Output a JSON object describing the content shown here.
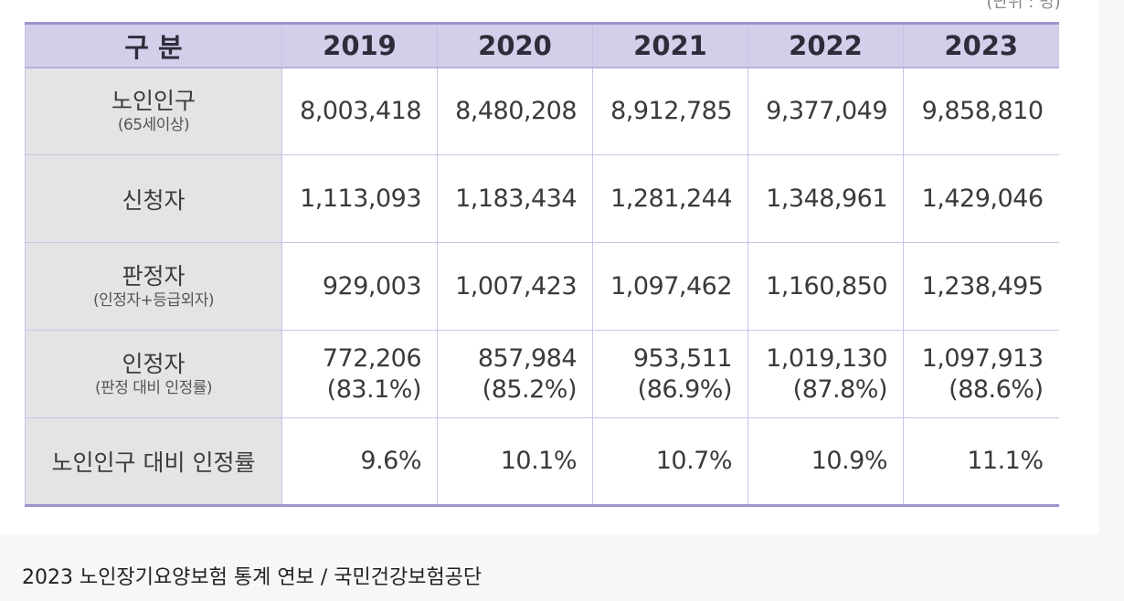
{
  "table": {
    "unit_label": "(단위 : 명)",
    "header": {
      "category": "구 분",
      "years": [
        "2019",
        "2020",
        "2021",
        "2022",
        "2023"
      ]
    },
    "rows": [
      {
        "label": "노인인구",
        "sublabel": "(65세이상)",
        "values": [
          "8,003,418",
          "8,480,208",
          "8,912,785",
          "9,377,049",
          "9,858,810"
        ]
      },
      {
        "label": "신청자",
        "values": [
          "1,113,093",
          "1,183,434",
          "1,281,244",
          "1,348,961",
          "1,429,046"
        ]
      },
      {
        "label": "판정자",
        "sublabel": "(인정자+등급외자)",
        "values": [
          "929,003",
          "1,007,423",
          "1,097,462",
          "1,160,850",
          "1,238,495"
        ]
      },
      {
        "label": "인정자",
        "sublabel": "(판정 대비 인정률)",
        "values": [
          "772,206",
          "857,984",
          "953,511",
          "1,019,130",
          "1,097,913"
        ],
        "rates": [
          "(83.1%)",
          "(85.2%)",
          "(86.9%)",
          "(87.8%)",
          "(88.6%)"
        ]
      },
      {
        "label": "노인인구 대비 인정률",
        "values": [
          "9.6%",
          "10.1%",
          "10.7%",
          "10.9%",
          "11.1%"
        ]
      }
    ]
  },
  "caption": "2023 노인장기요양보험 통계 연보 / 국민건강보험공단"
}
